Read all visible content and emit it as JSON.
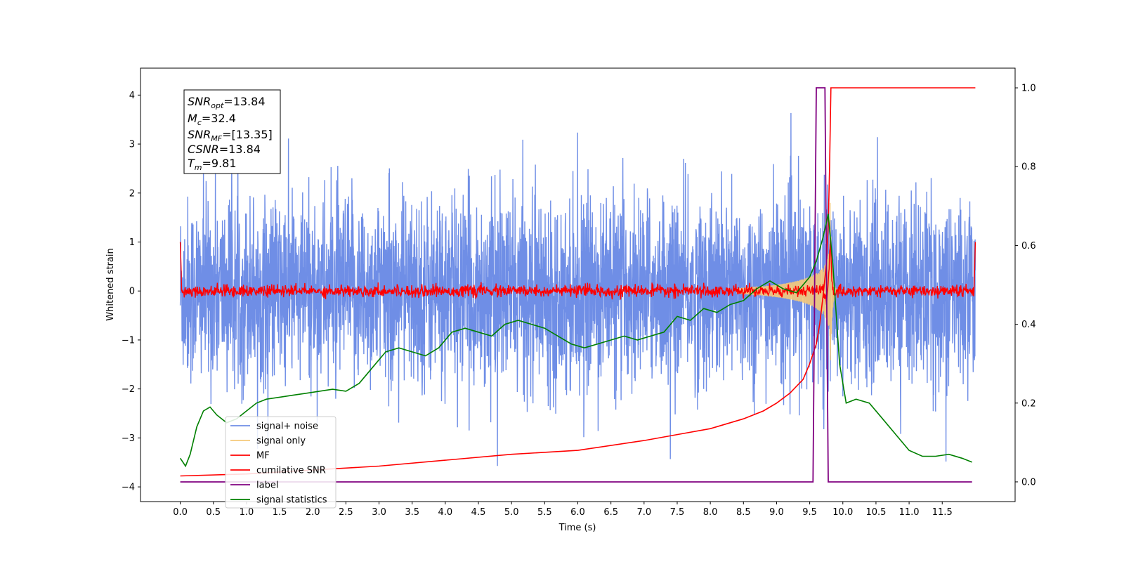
{
  "chart_data": {
    "type": "line",
    "xlabel": "Time (s)",
    "ylabel": "Whitened strain",
    "ylabel_right": "",
    "xlim": [
      -0.6,
      12.6
    ],
    "ylim": [
      -4.3,
      4.55
    ],
    "ylim_right": [
      -0.05,
      1.05
    ],
    "xticks": [
      0.0,
      0.5,
      1.0,
      1.5,
      2.0,
      2.5,
      3.0,
      3.5,
      4.0,
      4.5,
      5.0,
      5.5,
      6.0,
      6.5,
      7.0,
      7.5,
      8.0,
      8.5,
      9.0,
      9.5,
      10.0,
      10.5,
      11.0,
      11.5
    ],
    "xtick_labels": [
      "0.0",
      "0.5",
      "1.0",
      "1.5",
      "2.0",
      "2.5",
      "3.0",
      "3.5",
      "4.0",
      "4.5",
      "5.0",
      "5.5",
      "6.0",
      "6.5",
      "7.0",
      "7.5",
      "8.0",
      "8.5",
      "9.0",
      "9.5",
      "10.0",
      "10.5",
      "11.0",
      "11.5"
    ],
    "yticks": [
      -4,
      -3,
      -2,
      -1,
      0,
      1,
      2,
      3,
      4
    ],
    "ytick_labels": [
      "−4",
      "−3",
      "−2",
      "−1",
      "0",
      "1",
      "2",
      "3",
      "4"
    ],
    "yticks_right": [
      0.0,
      0.2,
      0.4,
      0.6,
      0.8,
      1.0
    ],
    "ytick_labels_right": [
      "0.0",
      "0.2",
      "0.4",
      "0.6",
      "0.8",
      "1.0"
    ],
    "grid": false,
    "legend_position": "lower-left",
    "annotation": {
      "lines": [
        {
          "var": "SNR",
          "sub": "opt",
          "rest": "=13.84"
        },
        {
          "var": "M",
          "sub": "c",
          "rest": "=32.4"
        },
        {
          "var": "SNR",
          "sub": "MF",
          "rest": "=[13.35]"
        },
        {
          "var": "CSNR",
          "sub": "",
          "rest": "=13.84"
        },
        {
          "var": "T",
          "sub": "m",
          "rest": "=9.81"
        }
      ]
    },
    "series": [
      {
        "name": "signal+ noise",
        "color": "#6f8ee6",
        "axis": "left",
        "style": "noise",
        "amplitude_std": 0.95,
        "x_range": [
          0.0,
          12.0
        ]
      },
      {
        "name": "signal only",
        "color": "#f5c97a",
        "axis": "left",
        "style": "chirp",
        "merger_time": 9.81,
        "peak_amplitude": 1.8
      },
      {
        "name": "MF",
        "color": "#ff0000",
        "axis": "left",
        "style": "noise",
        "amplitude_std": 0.06,
        "edge_value": 1.0
      },
      {
        "name": "cumilative SNR",
        "color": "#ff0000",
        "axis": "right",
        "x": [
          0.0,
          1.0,
          2.0,
          3.0,
          4.0,
          5.0,
          6.0,
          7.0,
          7.5,
          8.0,
          8.5,
          8.8,
          9.0,
          9.2,
          9.4,
          9.5,
          9.6,
          9.65,
          9.7,
          9.75,
          9.78,
          9.8,
          9.82,
          12.0
        ],
        "y": [
          0.015,
          0.02,
          0.03,
          0.04,
          0.055,
          0.07,
          0.08,
          0.105,
          0.12,
          0.135,
          0.16,
          0.18,
          0.2,
          0.225,
          0.26,
          0.3,
          0.35,
          0.4,
          0.47,
          0.55,
          0.65,
          0.8,
          1.0,
          1.0
        ]
      },
      {
        "name": "label",
        "color": "#800080",
        "axis": "right",
        "x": [
          0.0,
          9.55,
          9.6,
          9.73,
          9.78,
          11.95
        ],
        "y": [
          0.0,
          0.0,
          1.0,
          1.0,
          0.0,
          0.0
        ]
      },
      {
        "name": "signal statistics",
        "color": "#008000",
        "axis": "right",
        "x": [
          0.0,
          0.08,
          0.15,
          0.25,
          0.35,
          0.45,
          0.55,
          0.7,
          0.85,
          1.0,
          1.15,
          1.3,
          1.5,
          1.7,
          1.9,
          2.1,
          2.3,
          2.5,
          2.7,
          2.9,
          3.1,
          3.3,
          3.5,
          3.7,
          3.9,
          4.1,
          4.3,
          4.5,
          4.7,
          4.9,
          5.1,
          5.3,
          5.5,
          5.7,
          5.9,
          6.1,
          6.3,
          6.5,
          6.7,
          6.9,
          7.1,
          7.3,
          7.5,
          7.7,
          7.9,
          8.1,
          8.3,
          8.5,
          8.7,
          8.9,
          9.1,
          9.3,
          9.5,
          9.6,
          9.7,
          9.78,
          9.85,
          9.95,
          10.05,
          10.2,
          10.4,
          10.6,
          10.8,
          11.0,
          11.2,
          11.4,
          11.6,
          11.8,
          11.95
        ],
        "y": [
          0.06,
          0.04,
          0.07,
          0.14,
          0.18,
          0.19,
          0.17,
          0.15,
          0.16,
          0.18,
          0.2,
          0.21,
          0.215,
          0.22,
          0.225,
          0.23,
          0.235,
          0.23,
          0.25,
          0.29,
          0.33,
          0.34,
          0.33,
          0.32,
          0.34,
          0.38,
          0.39,
          0.38,
          0.37,
          0.4,
          0.41,
          0.4,
          0.39,
          0.37,
          0.35,
          0.34,
          0.35,
          0.36,
          0.37,
          0.36,
          0.37,
          0.38,
          0.42,
          0.41,
          0.44,
          0.43,
          0.45,
          0.46,
          0.49,
          0.51,
          0.49,
          0.48,
          0.52,
          0.56,
          0.62,
          0.68,
          0.55,
          0.3,
          0.2,
          0.21,
          0.2,
          0.16,
          0.12,
          0.08,
          0.065,
          0.065,
          0.07,
          0.06,
          0.05
        ]
      }
    ]
  }
}
